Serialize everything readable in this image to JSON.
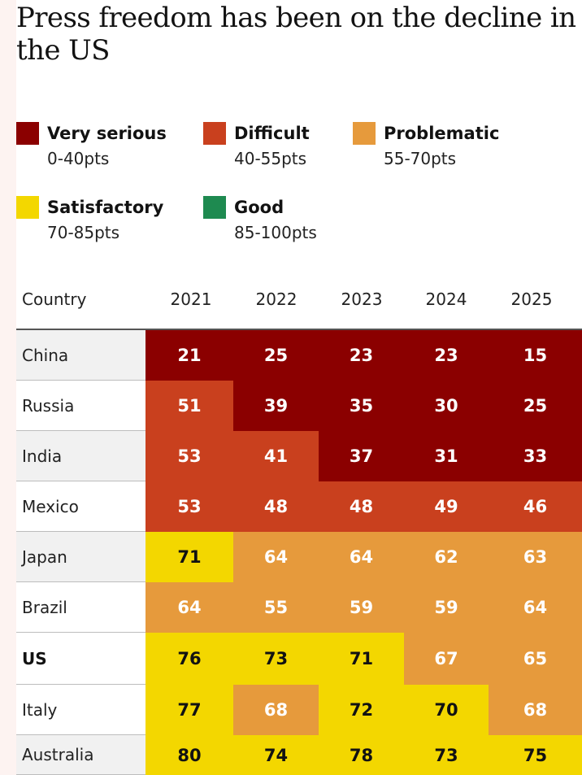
{
  "title": "Press freedom has been on the decline in the US",
  "legend": [
    {
      "label": "Very serious",
      "range": "0-40pts",
      "color": "#8b0000"
    },
    {
      "label": "Difficult",
      "range": "40-55pts",
      "color": "#c9401e"
    },
    {
      "label": "Problematic",
      "range": "55-70pts",
      "color": "#e69a3c"
    },
    {
      "label": "Satisfactory",
      "range": "70-85pts",
      "color": "#f3d700"
    },
    {
      "label": "Good",
      "range": "85-100pts",
      "color": "#1e8a50"
    }
  ],
  "chart_data": {
    "type": "table",
    "title": "Press freedom has been on the decline in the US",
    "header": "Country",
    "columns": [
      "2021",
      "2022",
      "2023",
      "2024",
      "2025"
    ],
    "rows": [
      {
        "country": "China",
        "values": [
          21,
          25,
          23,
          23,
          15
        ]
      },
      {
        "country": "Russia",
        "values": [
          51,
          39,
          35,
          30,
          25
        ]
      },
      {
        "country": "India",
        "values": [
          53,
          41,
          37,
          31,
          33
        ]
      },
      {
        "country": "Mexico",
        "values": [
          53,
          48,
          48,
          49,
          46
        ]
      },
      {
        "country": "Japan",
        "values": [
          71,
          64,
          64,
          62,
          63
        ]
      },
      {
        "country": "Brazil",
        "values": [
          64,
          55,
          59,
          59,
          64
        ]
      },
      {
        "country": "US",
        "values": [
          76,
          73,
          71,
          67,
          65
        ],
        "highlight": true
      },
      {
        "country": "Italy",
        "values": [
          77,
          68,
          72,
          70,
          68
        ]
      },
      {
        "country": "Australia",
        "values": [
          80,
          74,
          78,
          73,
          75
        ]
      }
    ]
  }
}
